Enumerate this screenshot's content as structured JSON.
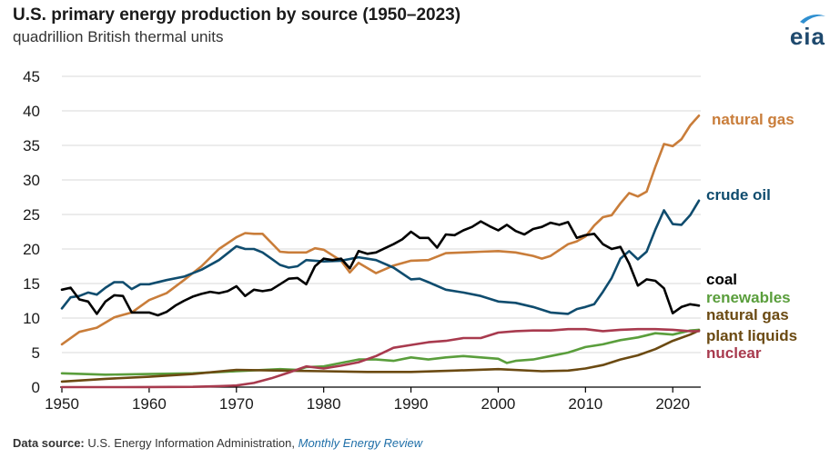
{
  "header": {
    "title": "U.S. primary energy production by source (1950–2023)",
    "subtitle": "quadrillion British thermal units",
    "logo_text": "eia"
  },
  "footer": {
    "source_label": "Data source:",
    "source_text": "U.S. Energy Information Administration,",
    "publication": "Monthly Energy Review"
  },
  "chart_data": {
    "type": "line",
    "title": "U.S. primary energy production by source (1950–2023)",
    "ylabel": "quadrillion British thermal units",
    "xlim": [
      1950,
      2023
    ],
    "ylim": [
      0,
      45
    ],
    "xticks": [
      "1950",
      "1960",
      "1970",
      "1980",
      "1990",
      "2000",
      "2010",
      "2020"
    ],
    "yticks": [
      "0",
      "5",
      "10",
      "15",
      "20",
      "25",
      "30",
      "35",
      "40",
      "45"
    ],
    "grid": "horizontal",
    "legend": "inline labels at right end of lines",
    "series": [
      {
        "name": "natural gas",
        "color": "#c97d3a",
        "x": [
          1950,
          1952,
          1954,
          1956,
          1958,
          1960,
          1962,
          1964,
          1966,
          1968,
          1970,
          1971,
          1972,
          1973,
          1975,
          1976,
          1978,
          1979,
          1980,
          1982,
          1983,
          1984,
          1986,
          1988,
          1990,
          1992,
          1994,
          1996,
          1998,
          2000,
          2002,
          2004,
          2005,
          2006,
          2008,
          2009,
          2010,
          2011,
          2012,
          2013,
          2014,
          2015,
          2016,
          2017,
          2018,
          2019,
          2020,
          2021,
          2022,
          2023
        ],
        "y": [
          6.2,
          8.0,
          8.6,
          10.1,
          10.8,
          12.6,
          13.6,
          15.5,
          17.5,
          20.0,
          21.7,
          22.3,
          22.2,
          22.2,
          19.6,
          19.5,
          19.5,
          20.1,
          19.9,
          18.3,
          16.6,
          18.0,
          16.5,
          17.6,
          18.3,
          18.4,
          19.4,
          19.5,
          19.6,
          19.7,
          19.5,
          19.0,
          18.6,
          19.0,
          20.7,
          21.1,
          21.8,
          23.4,
          24.6,
          24.9,
          26.6,
          28.1,
          27.6,
          28.3,
          31.9,
          35.2,
          34.9,
          35.9,
          37.9,
          39.3
        ]
      },
      {
        "name": "crude oil",
        "color": "#0f4c6e",
        "x": [
          1950,
          1951,
          1952,
          1953,
          1954,
          1955,
          1956,
          1957,
          1958,
          1959,
          1960,
          1962,
          1964,
          1966,
          1968,
          1970,
          1971,
          1972,
          1973,
          1974,
          1975,
          1976,
          1977,
          1978,
          1980,
          1982,
          1984,
          1986,
          1988,
          1990,
          1991,
          1992,
          1994,
          1996,
          1998,
          2000,
          2002,
          2004,
          2006,
          2008,
          2009,
          2010,
          2011,
          2012,
          2013,
          2014,
          2015,
          2016,
          2017,
          2018,
          2019,
          2020,
          2021,
          2022,
          2023
        ],
        "y": [
          11.4,
          13.0,
          13.2,
          13.7,
          13.4,
          14.4,
          15.2,
          15.2,
          14.2,
          14.9,
          14.9,
          15.5,
          16.0,
          17.0,
          18.4,
          20.4,
          20.0,
          20.0,
          19.5,
          18.6,
          17.7,
          17.3,
          17.5,
          18.4,
          18.2,
          18.3,
          18.8,
          18.4,
          17.3,
          15.6,
          15.7,
          15.2,
          14.1,
          13.7,
          13.2,
          12.4,
          12.2,
          11.6,
          10.8,
          10.6,
          11.3,
          11.6,
          12.0,
          13.8,
          15.8,
          18.6,
          19.7,
          18.5,
          19.6,
          22.8,
          25.6,
          23.6,
          23.5,
          24.9,
          27.0
        ]
      },
      {
        "name": "coal",
        "color": "#000000",
        "x": [
          1950,
          1951,
          1952,
          1953,
          1954,
          1955,
          1956,
          1957,
          1958,
          1959,
          1960,
          1961,
          1962,
          1963,
          1964,
          1965,
          1966,
          1967,
          1968,
          1969,
          1970,
          1971,
          1972,
          1973,
          1974,
          1975,
          1976,
          1977,
          1978,
          1979,
          1980,
          1981,
          1982,
          1983,
          1984,
          1985,
          1986,
          1987,
          1988,
          1989,
          1990,
          1991,
          1992,
          1993,
          1994,
          1995,
          1996,
          1997,
          1998,
          1999,
          2000,
          2001,
          2002,
          2003,
          2004,
          2005,
          2006,
          2007,
          2008,
          2009,
          2010,
          2011,
          2012,
          2013,
          2014,
          2015,
          2016,
          2017,
          2018,
          2019,
          2020,
          2021,
          2022,
          2023
        ],
        "y": [
          14.1,
          14.4,
          12.7,
          12.4,
          10.6,
          12.4,
          13.3,
          13.2,
          10.8,
          10.8,
          10.8,
          10.4,
          10.9,
          11.8,
          12.5,
          13.1,
          13.5,
          13.8,
          13.6,
          13.9,
          14.6,
          13.2,
          14.1,
          13.9,
          14.1,
          14.9,
          15.7,
          15.8,
          14.9,
          17.5,
          18.6,
          18.4,
          18.6,
          17.2,
          19.7,
          19.3,
          19.5,
          20.1,
          20.7,
          21.4,
          22.5,
          21.6,
          21.6,
          20.2,
          22.1,
          22.0,
          22.7,
          23.2,
          24.0,
          23.3,
          22.7,
          23.5,
          22.6,
          22.1,
          22.9,
          23.2,
          23.8,
          23.5,
          23.9,
          21.6,
          22.0,
          22.2,
          20.7,
          20.0,
          20.3,
          17.9,
          14.7,
          15.6,
          15.4,
          14.3,
          10.7,
          11.6,
          12.0,
          11.8
        ]
      },
      {
        "name": "renewables",
        "color": "#5a9e3c",
        "x": [
          1950,
          1955,
          1960,
          1965,
          1970,
          1975,
          1977,
          1978,
          1980,
          1982,
          1984,
          1986,
          1988,
          1990,
          1992,
          1994,
          1996,
          1998,
          2000,
          2001,
          2002,
          2004,
          2006,
          2008,
          2010,
          2012,
          2014,
          2016,
          2018,
          2020,
          2022,
          2023
        ],
        "y": [
          2.0,
          1.8,
          1.9,
          2.0,
          2.3,
          2.6,
          2.5,
          2.9,
          3.0,
          3.5,
          4.0,
          4.0,
          3.8,
          4.3,
          4.0,
          4.3,
          4.5,
          4.3,
          4.1,
          3.5,
          3.8,
          4.0,
          4.5,
          5.0,
          5.8,
          6.2,
          6.8,
          7.2,
          7.8,
          7.6,
          8.2,
          8.3
        ]
      },
      {
        "name": "natural gas plant liquids",
        "color": "#6b4a12",
        "x": [
          1950,
          1955,
          1960,
          1965,
          1970,
          1975,
          1980,
          1985,
          1990,
          1995,
          2000,
          2005,
          2008,
          2010,
          2012,
          2014,
          2016,
          2018,
          2020,
          2022,
          2023
        ],
        "y": [
          0.8,
          1.2,
          1.5,
          1.9,
          2.5,
          2.4,
          2.3,
          2.2,
          2.2,
          2.4,
          2.6,
          2.3,
          2.4,
          2.7,
          3.2,
          4.0,
          4.6,
          5.5,
          6.7,
          7.6,
          8.2
        ]
      },
      {
        "name": "nuclear",
        "color": "#a83a4e",
        "x": [
          1950,
          1957,
          1960,
          1965,
          1968,
          1970,
          1972,
          1974,
          1976,
          1978,
          1980,
          1982,
          1984,
          1986,
          1988,
          1990,
          1992,
          1994,
          1996,
          1998,
          2000,
          2002,
          2004,
          2006,
          2008,
          2010,
          2012,
          2014,
          2016,
          2018,
          2020,
          2022,
          2023
        ],
        "y": [
          0,
          0,
          0.01,
          0.04,
          0.14,
          0.24,
          0.6,
          1.27,
          2.1,
          3.0,
          2.7,
          3.1,
          3.6,
          4.5,
          5.7,
          6.1,
          6.5,
          6.7,
          7.1,
          7.1,
          7.9,
          8.1,
          8.2,
          8.2,
          8.4,
          8.4,
          8.1,
          8.3,
          8.4,
          8.4,
          8.3,
          8.1,
          8.1
        ]
      }
    ],
    "labels": [
      {
        "text": "natural gas",
        "color": "#c97d3a"
      },
      {
        "text": "crude oil",
        "color": "#0f4c6e"
      },
      {
        "text": "coal",
        "color": "#000000"
      },
      {
        "text": "renewables",
        "color": "#5a9e3c"
      },
      {
        "text": "natural gas",
        "color": "#6b4a12"
      },
      {
        "text": "plant liquids",
        "color": "#6b4a12"
      },
      {
        "text": "nuclear",
        "color": "#a83a4e"
      }
    ]
  }
}
